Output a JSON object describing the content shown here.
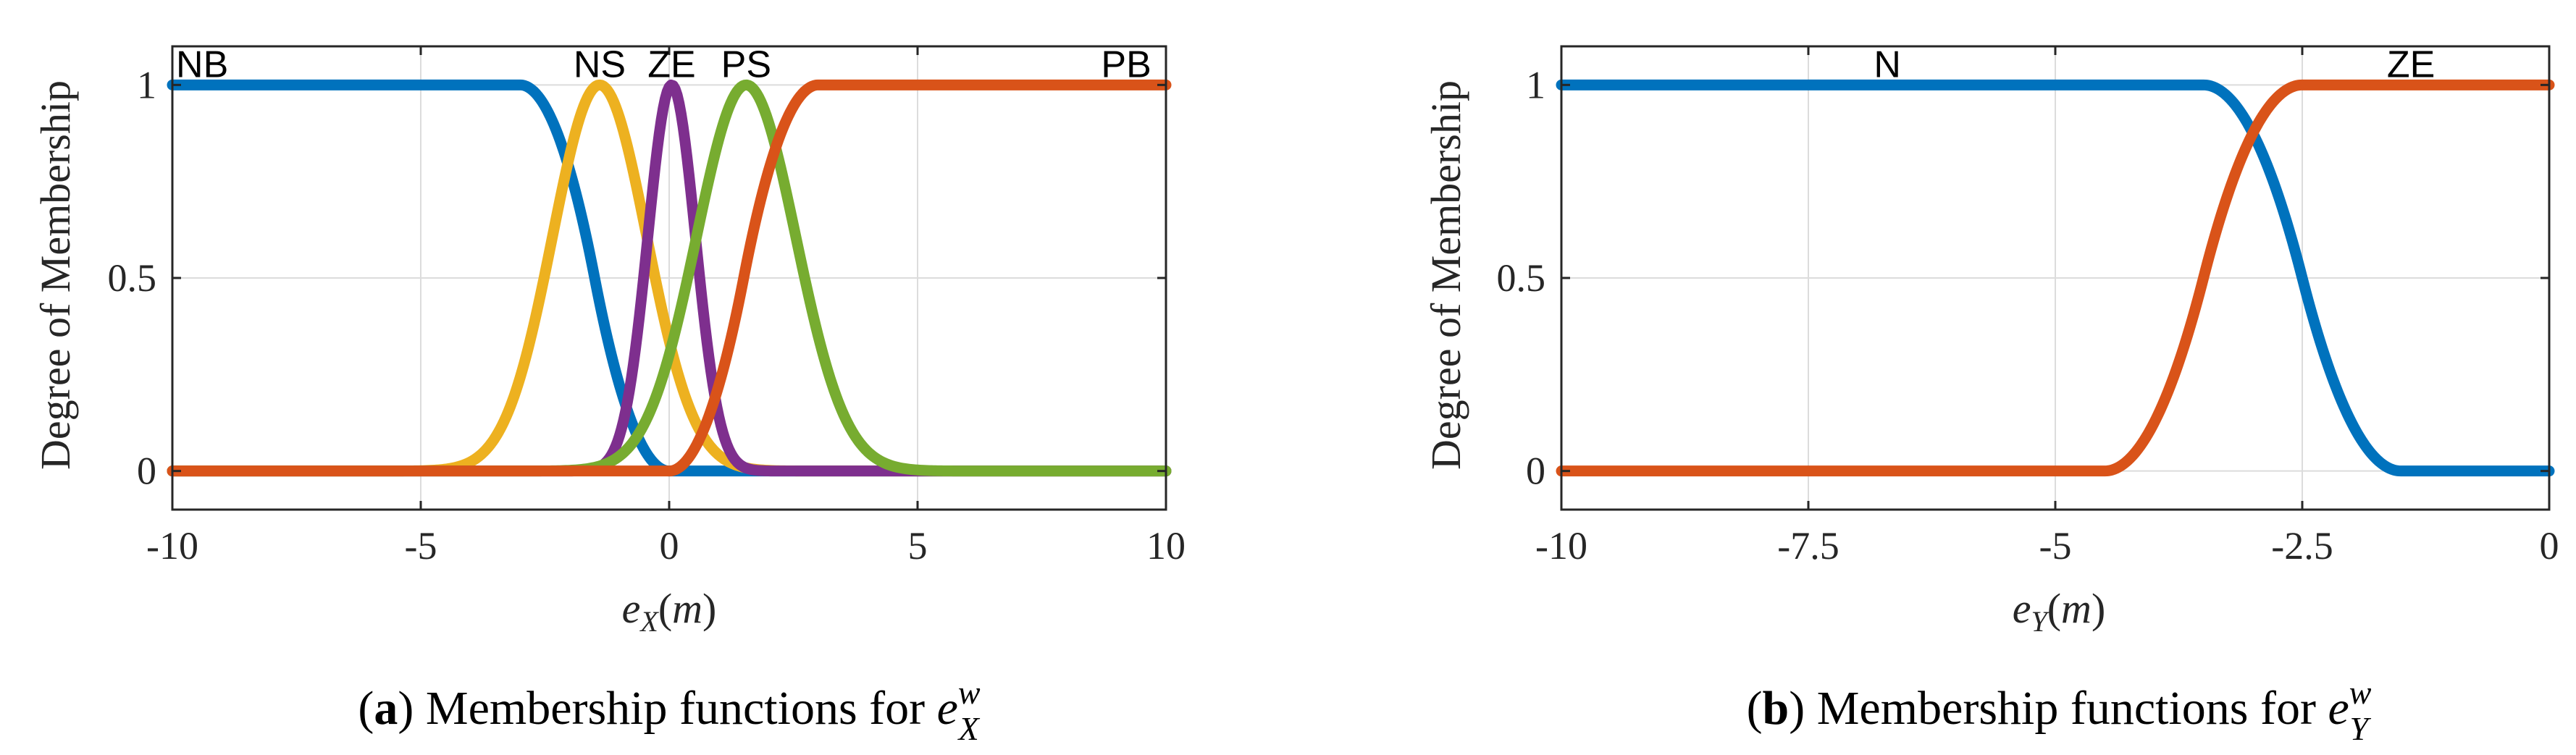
{
  "chart_data": [
    {
      "type": "line",
      "panel": "a",
      "caption": {
        "letter": "a",
        "text": "Membership functions for ",
        "math_base": "e",
        "math_sup": "w",
        "math_sub": "X"
      },
      "ylabel": "Degree of Membership",
      "xlabel": {
        "base": "e",
        "sub": "X",
        "arg": "m"
      },
      "xlim": [
        -10,
        10
      ],
      "ylim": [
        -0.1,
        1.1
      ],
      "xticks": [
        -10,
        -5,
        0,
        5,
        10
      ],
      "xtick_labels": [
        "-10",
        "-5",
        "0",
        "5",
        "10"
      ],
      "yticks": [
        0,
        0.5,
        1
      ],
      "ytick_labels": [
        "0",
        "0.5",
        "1"
      ],
      "grid": true,
      "series": [
        {
          "name": "NB",
          "kind": "z",
          "a": -3,
          "b": 0,
          "color": "#0072BD",
          "label_at": [
            -9.4,
            1.02
          ]
        },
        {
          "name": "NS",
          "kind": "gauss",
          "mean": -1.4,
          "sigma": 0.95,
          "color": "#EDB120",
          "label_at": [
            -1.4,
            1.02
          ]
        },
        {
          "name": "ZE",
          "kind": "gauss",
          "mean": 0.05,
          "sigma": 0.48,
          "color": "#7E2F8E",
          "label_at": [
            0.05,
            1.02
          ]
        },
        {
          "name": "PS",
          "kind": "gauss",
          "mean": 1.55,
          "sigma": 1.0,
          "color": "#77AC30",
          "label_at": [
            1.55,
            1.02
          ]
        },
        {
          "name": "PB",
          "kind": "s",
          "a": 0,
          "b": 3,
          "color": "#D95319",
          "label_at": [
            9.2,
            1.02
          ]
        }
      ]
    },
    {
      "type": "line",
      "panel": "b",
      "caption": {
        "letter": "b",
        "text": "Membership functions for ",
        "math_base": "e",
        "math_sup": "w",
        "math_sub": "Y"
      },
      "ylabel": "Degree of Membership",
      "xlabel": {
        "base": "e",
        "sub": "Y",
        "arg": "m"
      },
      "xlim": [
        -10,
        0
      ],
      "ylim": [
        -0.1,
        1.1
      ],
      "xticks": [
        -10,
        -7.5,
        -5,
        -2.5,
        0
      ],
      "xtick_labels": [
        "-10",
        "-7.5",
        "-5",
        "-2.5",
        "0"
      ],
      "yticks": [
        0,
        0.5,
        1
      ],
      "ytick_labels": [
        "0",
        "0.5",
        "1"
      ],
      "grid": true,
      "series": [
        {
          "name": "N",
          "kind": "z",
          "a": -3.5,
          "b": -1.5,
          "color": "#0072BD",
          "label_at": [
            -6.7,
            1.02
          ]
        },
        {
          "name": "ZE",
          "kind": "s",
          "a": -4.5,
          "b": -2.5,
          "color": "#D95319",
          "label_at": [
            -1.4,
            1.02
          ]
        }
      ]
    }
  ]
}
